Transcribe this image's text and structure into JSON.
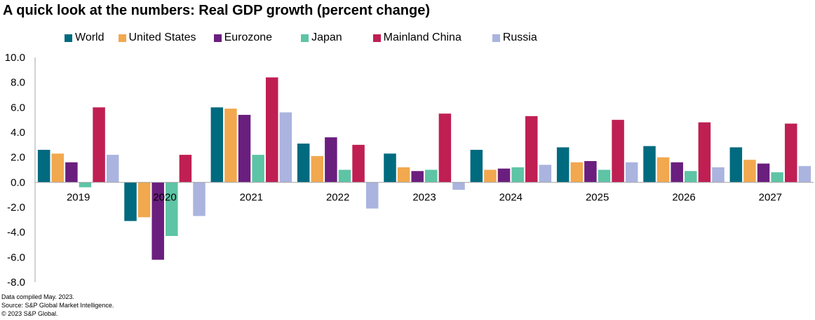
{
  "chart_data": {
    "type": "bar",
    "title": "A quick look at the numbers: Real GDP growth (percent change)",
    "xlabel": "",
    "ylabel": "",
    "ylim": [
      -8.0,
      10.0
    ],
    "yticks": [
      "10.0",
      "8.0",
      "6.0",
      "4.0",
      "2.0",
      "0.0",
      "-2.0",
      "-4.0",
      "-6.0",
      "-8.0"
    ],
    "ytick_values": [
      10,
      8,
      6,
      4,
      2,
      0,
      -2,
      -4,
      -6,
      -8
    ],
    "legend_position": "top",
    "grid": false,
    "categories": [
      "2019",
      "2020",
      "2021",
      "2022",
      "2023",
      "2024",
      "2025",
      "2026",
      "2027"
    ],
    "series": [
      {
        "name": "World",
        "color": "#006a7f",
        "values": [
          2.6,
          -3.1,
          6.0,
          3.1,
          2.3,
          2.6,
          2.8,
          2.9,
          2.8
        ]
      },
      {
        "name": "United States",
        "color": "#f2a84e",
        "values": [
          2.3,
          -2.8,
          5.9,
          2.1,
          1.2,
          1.0,
          1.6,
          2.0,
          1.8
        ]
      },
      {
        "name": "Eurozone",
        "color": "#6a1e7e",
        "values": [
          1.6,
          -6.2,
          5.4,
          3.6,
          0.9,
          1.1,
          1.7,
          1.6,
          1.5
        ]
      },
      {
        "name": "Japan",
        "color": "#5ec4a6",
        "values": [
          -0.4,
          -4.3,
          2.2,
          1.0,
          1.0,
          1.2,
          1.0,
          0.9,
          0.8
        ]
      },
      {
        "name": "Mainland China",
        "color": "#bf1f53",
        "values": [
          6.0,
          2.2,
          8.4,
          3.0,
          5.5,
          5.3,
          5.0,
          4.8,
          4.7
        ]
      },
      {
        "name": "Russia",
        "color": "#aab4df",
        "values": [
          2.2,
          -2.7,
          5.6,
          -2.1,
          -0.6,
          1.4,
          1.6,
          1.2,
          1.3
        ]
      }
    ]
  },
  "footnotes": [
    "Data compiled May. 2023.",
    "Source: S&P Global Market Intelligence.",
    "© 2023 S&P Global."
  ]
}
